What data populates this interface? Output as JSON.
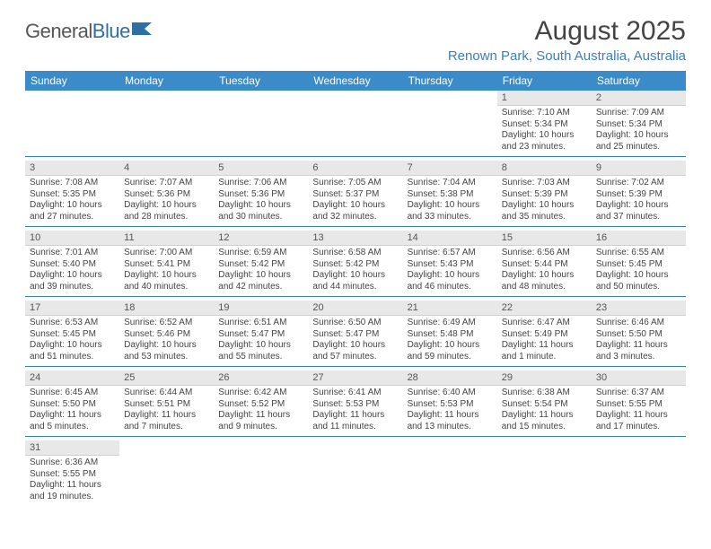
{
  "logo": {
    "part1": "General",
    "part2": "Blue"
  },
  "title": "August 2025",
  "location": "Renown Park, South Australia, Australia",
  "colors": {
    "header_bg": "#3b8bc9",
    "header_text": "#ffffff",
    "accent": "#3b7fb8",
    "daynum_bg": "#e8e8e8",
    "body_text": "#444444",
    "logo_gray": "#565656",
    "logo_blue": "#2f6fa8"
  },
  "weekdays": [
    "Sunday",
    "Monday",
    "Tuesday",
    "Wednesday",
    "Thursday",
    "Friday",
    "Saturday"
  ],
  "weeks": [
    [
      null,
      null,
      null,
      null,
      null,
      {
        "n": "1",
        "sunrise": "Sunrise: 7:10 AM",
        "sunset": "Sunset: 5:34 PM",
        "daylight1": "Daylight: 10 hours",
        "daylight2": "and 23 minutes."
      },
      {
        "n": "2",
        "sunrise": "Sunrise: 7:09 AM",
        "sunset": "Sunset: 5:34 PM",
        "daylight1": "Daylight: 10 hours",
        "daylight2": "and 25 minutes."
      }
    ],
    [
      {
        "n": "3",
        "sunrise": "Sunrise: 7:08 AM",
        "sunset": "Sunset: 5:35 PM",
        "daylight1": "Daylight: 10 hours",
        "daylight2": "and 27 minutes."
      },
      {
        "n": "4",
        "sunrise": "Sunrise: 7:07 AM",
        "sunset": "Sunset: 5:36 PM",
        "daylight1": "Daylight: 10 hours",
        "daylight2": "and 28 minutes."
      },
      {
        "n": "5",
        "sunrise": "Sunrise: 7:06 AM",
        "sunset": "Sunset: 5:36 PM",
        "daylight1": "Daylight: 10 hours",
        "daylight2": "and 30 minutes."
      },
      {
        "n": "6",
        "sunrise": "Sunrise: 7:05 AM",
        "sunset": "Sunset: 5:37 PM",
        "daylight1": "Daylight: 10 hours",
        "daylight2": "and 32 minutes."
      },
      {
        "n": "7",
        "sunrise": "Sunrise: 7:04 AM",
        "sunset": "Sunset: 5:38 PM",
        "daylight1": "Daylight: 10 hours",
        "daylight2": "and 33 minutes."
      },
      {
        "n": "8",
        "sunrise": "Sunrise: 7:03 AM",
        "sunset": "Sunset: 5:39 PM",
        "daylight1": "Daylight: 10 hours",
        "daylight2": "and 35 minutes."
      },
      {
        "n": "9",
        "sunrise": "Sunrise: 7:02 AM",
        "sunset": "Sunset: 5:39 PM",
        "daylight1": "Daylight: 10 hours",
        "daylight2": "and 37 minutes."
      }
    ],
    [
      {
        "n": "10",
        "sunrise": "Sunrise: 7:01 AM",
        "sunset": "Sunset: 5:40 PM",
        "daylight1": "Daylight: 10 hours",
        "daylight2": "and 39 minutes."
      },
      {
        "n": "11",
        "sunrise": "Sunrise: 7:00 AM",
        "sunset": "Sunset: 5:41 PM",
        "daylight1": "Daylight: 10 hours",
        "daylight2": "and 40 minutes."
      },
      {
        "n": "12",
        "sunrise": "Sunrise: 6:59 AM",
        "sunset": "Sunset: 5:42 PM",
        "daylight1": "Daylight: 10 hours",
        "daylight2": "and 42 minutes."
      },
      {
        "n": "13",
        "sunrise": "Sunrise: 6:58 AM",
        "sunset": "Sunset: 5:42 PM",
        "daylight1": "Daylight: 10 hours",
        "daylight2": "and 44 minutes."
      },
      {
        "n": "14",
        "sunrise": "Sunrise: 6:57 AM",
        "sunset": "Sunset: 5:43 PM",
        "daylight1": "Daylight: 10 hours",
        "daylight2": "and 46 minutes."
      },
      {
        "n": "15",
        "sunrise": "Sunrise: 6:56 AM",
        "sunset": "Sunset: 5:44 PM",
        "daylight1": "Daylight: 10 hours",
        "daylight2": "and 48 minutes."
      },
      {
        "n": "16",
        "sunrise": "Sunrise: 6:55 AM",
        "sunset": "Sunset: 5:45 PM",
        "daylight1": "Daylight: 10 hours",
        "daylight2": "and 50 minutes."
      }
    ],
    [
      {
        "n": "17",
        "sunrise": "Sunrise: 6:53 AM",
        "sunset": "Sunset: 5:45 PM",
        "daylight1": "Daylight: 10 hours",
        "daylight2": "and 51 minutes."
      },
      {
        "n": "18",
        "sunrise": "Sunrise: 6:52 AM",
        "sunset": "Sunset: 5:46 PM",
        "daylight1": "Daylight: 10 hours",
        "daylight2": "and 53 minutes."
      },
      {
        "n": "19",
        "sunrise": "Sunrise: 6:51 AM",
        "sunset": "Sunset: 5:47 PM",
        "daylight1": "Daylight: 10 hours",
        "daylight2": "and 55 minutes."
      },
      {
        "n": "20",
        "sunrise": "Sunrise: 6:50 AM",
        "sunset": "Sunset: 5:47 PM",
        "daylight1": "Daylight: 10 hours",
        "daylight2": "and 57 minutes."
      },
      {
        "n": "21",
        "sunrise": "Sunrise: 6:49 AM",
        "sunset": "Sunset: 5:48 PM",
        "daylight1": "Daylight: 10 hours",
        "daylight2": "and 59 minutes."
      },
      {
        "n": "22",
        "sunrise": "Sunrise: 6:47 AM",
        "sunset": "Sunset: 5:49 PM",
        "daylight1": "Daylight: 11 hours",
        "daylight2": "and 1 minute."
      },
      {
        "n": "23",
        "sunrise": "Sunrise: 6:46 AM",
        "sunset": "Sunset: 5:50 PM",
        "daylight1": "Daylight: 11 hours",
        "daylight2": "and 3 minutes."
      }
    ],
    [
      {
        "n": "24",
        "sunrise": "Sunrise: 6:45 AM",
        "sunset": "Sunset: 5:50 PM",
        "daylight1": "Daylight: 11 hours",
        "daylight2": "and 5 minutes."
      },
      {
        "n": "25",
        "sunrise": "Sunrise: 6:44 AM",
        "sunset": "Sunset: 5:51 PM",
        "daylight1": "Daylight: 11 hours",
        "daylight2": "and 7 minutes."
      },
      {
        "n": "26",
        "sunrise": "Sunrise: 6:42 AM",
        "sunset": "Sunset: 5:52 PM",
        "daylight1": "Daylight: 11 hours",
        "daylight2": "and 9 minutes."
      },
      {
        "n": "27",
        "sunrise": "Sunrise: 6:41 AM",
        "sunset": "Sunset: 5:53 PM",
        "daylight1": "Daylight: 11 hours",
        "daylight2": "and 11 minutes."
      },
      {
        "n": "28",
        "sunrise": "Sunrise: 6:40 AM",
        "sunset": "Sunset: 5:53 PM",
        "daylight1": "Daylight: 11 hours",
        "daylight2": "and 13 minutes."
      },
      {
        "n": "29",
        "sunrise": "Sunrise: 6:38 AM",
        "sunset": "Sunset: 5:54 PM",
        "daylight1": "Daylight: 11 hours",
        "daylight2": "and 15 minutes."
      },
      {
        "n": "30",
        "sunrise": "Sunrise: 6:37 AM",
        "sunset": "Sunset: 5:55 PM",
        "daylight1": "Daylight: 11 hours",
        "daylight2": "and 17 minutes."
      }
    ],
    [
      {
        "n": "31",
        "sunrise": "Sunrise: 6:36 AM",
        "sunset": "Sunset: 5:55 PM",
        "daylight1": "Daylight: 11 hours",
        "daylight2": "and 19 minutes."
      },
      null,
      null,
      null,
      null,
      null,
      null
    ]
  ]
}
